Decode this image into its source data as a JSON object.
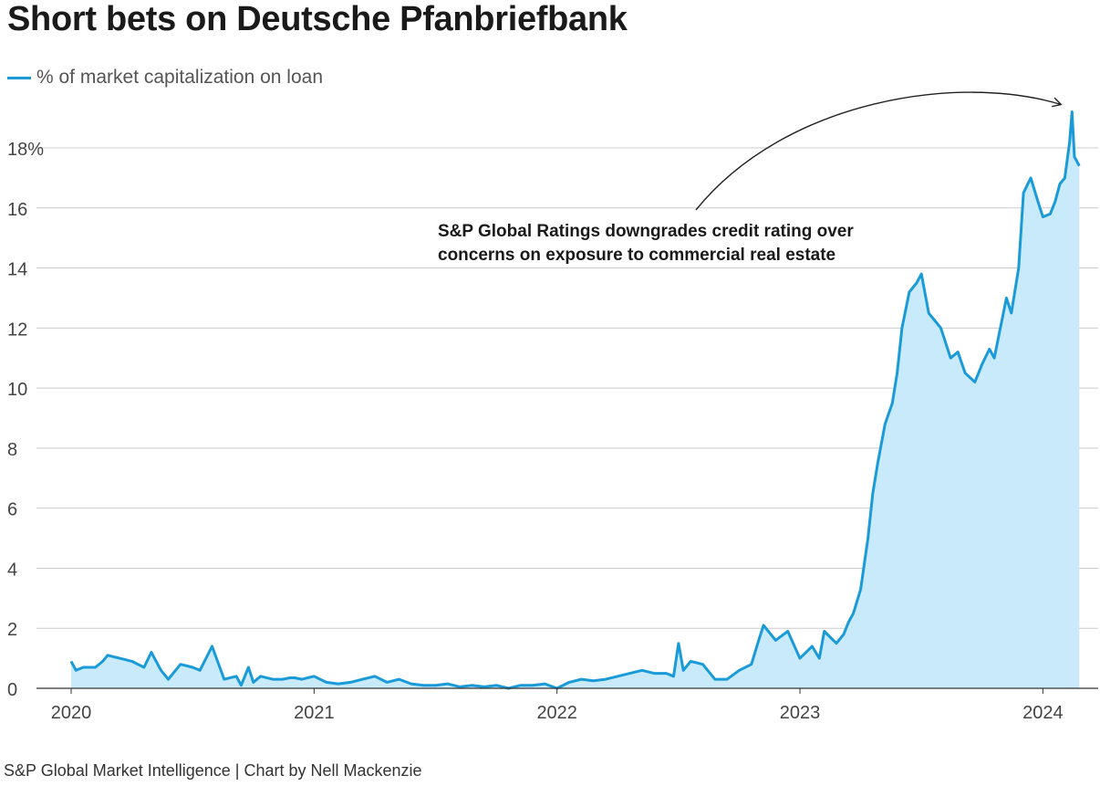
{
  "chart_data": {
    "type": "area",
    "title": "Short bets on Deutsche Pfanbriefbank",
    "legend": "% of market capitalization on loan",
    "legend_position": "top-left",
    "source": "S&P Global Market Intelligence | Chart by Nell Mackenzie",
    "annotation": {
      "lines": [
        "S&P Global Ratings downgrades credit rating over",
        "concerns on exposure to commercial real estate"
      ],
      "target_x": 2024.12,
      "target_y": 19.2
    },
    "xlim": [
      2020.0,
      2024.16
    ],
    "ylim": [
      0,
      18
    ],
    "x_ticks": [
      2020,
      2021,
      2022,
      2023,
      2024
    ],
    "x_tick_labels": [
      "2020",
      "2021",
      "2022",
      "2023",
      "2024"
    ],
    "y_ticks": [
      0,
      2,
      4,
      6,
      8,
      10,
      12,
      14,
      16,
      18
    ],
    "y_tick_labels": [
      "0",
      "2",
      "4",
      "6",
      "8",
      "10",
      "12",
      "14",
      "16",
      "18%"
    ],
    "grid": true,
    "colors": {
      "line": "#1a9bd7",
      "fill": "#c8eafb",
      "grid": "#cccccc"
    },
    "series": [
      {
        "x": [
          2020.0,
          2020.02,
          2020.05,
          2020.1,
          2020.13,
          2020.15,
          2020.2,
          2020.25,
          2020.3,
          2020.33,
          2020.37,
          2020.4,
          2020.43,
          2020.45,
          2020.5,
          2020.53,
          2020.58,
          2020.63,
          2020.68,
          2020.7,
          2020.73,
          2020.75,
          2020.78,
          2020.83,
          2020.87,
          2020.9,
          2020.92,
          2020.95,
          2021.0,
          2021.05,
          2021.1,
          2021.15,
          2021.2,
          2021.25,
          2021.3,
          2021.35,
          2021.4,
          2021.45,
          2021.5,
          2021.55,
          2021.6,
          2021.65,
          2021.7,
          2021.75,
          2021.8,
          2021.85,
          2021.9,
          2021.95,
          2022.0,
          2022.05,
          2022.1,
          2022.15,
          2022.2,
          2022.25,
          2022.3,
          2022.35,
          2022.4,
          2022.45,
          2022.48,
          2022.5,
          2022.52,
          2022.55,
          2022.6,
          2022.65,
          2022.7,
          2022.75,
          2022.8,
          2022.83,
          2022.85,
          2022.9,
          2022.95,
          2023.0,
          2023.05,
          2023.08,
          2023.1,
          2023.15,
          2023.18,
          2023.2,
          2023.22,
          2023.25,
          2023.28,
          2023.3,
          2023.32,
          2023.35,
          2023.38,
          2023.4,
          2023.42,
          2023.45,
          2023.48,
          2023.5,
          2023.53,
          2023.55,
          2023.58,
          2023.62,
          2023.65,
          2023.68,
          2023.72,
          2023.75,
          2023.78,
          2023.8,
          2023.82,
          2023.85,
          2023.87,
          2023.9,
          2023.92,
          2023.95,
          2023.98,
          2024.0,
          2024.03,
          2024.05,
          2024.07,
          2024.09,
          2024.11,
          2024.12,
          2024.13,
          2024.15
        ],
        "y": [
          0.9,
          0.6,
          0.7,
          0.7,
          0.9,
          1.1,
          1.0,
          0.9,
          0.7,
          1.2,
          0.6,
          0.3,
          0.6,
          0.8,
          0.7,
          0.6,
          1.4,
          0.3,
          0.4,
          0.1,
          0.7,
          0.2,
          0.4,
          0.3,
          0.3,
          0.35,
          0.35,
          0.3,
          0.4,
          0.2,
          0.15,
          0.2,
          0.3,
          0.4,
          0.2,
          0.3,
          0.15,
          0.1,
          0.1,
          0.15,
          0.05,
          0.1,
          0.05,
          0.1,
          0.0,
          0.1,
          0.1,
          0.15,
          0.0,
          0.2,
          0.3,
          0.25,
          0.3,
          0.4,
          0.5,
          0.6,
          0.5,
          0.5,
          0.4,
          1.5,
          0.6,
          0.9,
          0.8,
          0.3,
          0.3,
          0.6,
          0.8,
          1.6,
          2.1,
          1.6,
          1.9,
          1.0,
          1.4,
          1.0,
          1.9,
          1.5,
          1.8,
          2.2,
          2.5,
          3.3,
          5.0,
          6.5,
          7.5,
          8.8,
          9.5,
          10.5,
          12.0,
          13.2,
          13.5,
          13.8,
          12.5,
          12.3,
          12.0,
          11.0,
          11.2,
          10.5,
          10.2,
          10.8,
          11.3,
          11.0,
          11.8,
          13.0,
          12.5,
          14.0,
          16.5,
          17.0,
          16.2,
          15.7,
          15.8,
          16.2,
          16.8,
          17.0,
          18.2,
          19.2,
          17.7,
          17.4
        ]
      }
    ]
  }
}
